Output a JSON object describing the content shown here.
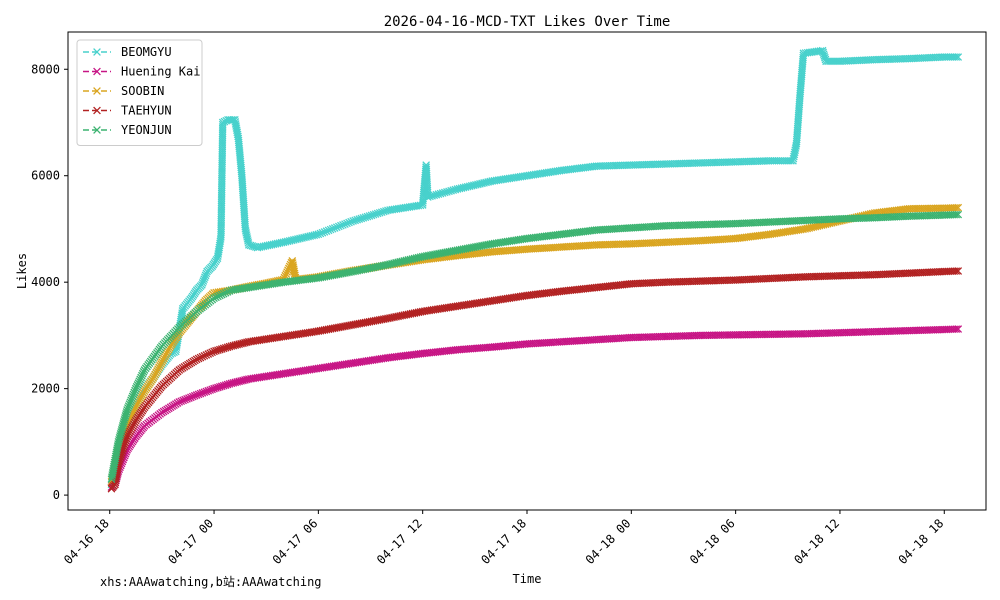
{
  "chart_data": {
    "type": "line",
    "title": "2026-04-16-MCD-TXT Likes Over Time",
    "xlabel": "Time",
    "ylabel": "Likes",
    "footer": "xhs:AAAwatching,b站:AAAwatching",
    "x_ticks": [
      "04-16 18",
      "04-17 00",
      "04-17 06",
      "04-17 12",
      "04-17 18",
      "04-18 00",
      "04-18 06",
      "04-18 12",
      "04-18 18"
    ],
    "y_ticks": [
      0,
      2000,
      4000,
      6000,
      8000
    ],
    "xlim_hours": [
      -2.4,
      50.4
    ],
    "ylim": [
      -280,
      8700
    ],
    "legend_position": "top-left",
    "grid": false,
    "series": [
      {
        "name": "BEOMGYU",
        "color": "#48d1cc",
        "points": [
          [
            0.1,
            200
          ],
          [
            0.5,
            700
          ],
          [
            1,
            1300
          ],
          [
            1.5,
            1700
          ],
          [
            2,
            2000
          ],
          [
            2.5,
            2200
          ],
          [
            3,
            2450
          ],
          [
            3.5,
            2650
          ],
          [
            3.8,
            2700
          ],
          [
            4.2,
            3500
          ],
          [
            4.7,
            3700
          ],
          [
            5,
            3850
          ],
          [
            5.3,
            3950
          ],
          [
            5.6,
            4200
          ],
          [
            5.9,
            4300
          ],
          [
            6.2,
            4450
          ],
          [
            6.4,
            4850
          ],
          [
            6.5,
            7000
          ],
          [
            6.8,
            7050
          ],
          [
            7.2,
            7050
          ],
          [
            7.4,
            6700
          ],
          [
            7.6,
            6000
          ],
          [
            7.8,
            5000
          ],
          [
            8,
            4700
          ],
          [
            8.5,
            4650
          ],
          [
            10,
            4750
          ],
          [
            12,
            4900
          ],
          [
            14,
            5150
          ],
          [
            16,
            5350
          ],
          [
            18,
            5450
          ],
          [
            18.2,
            6200
          ],
          [
            18.3,
            5600
          ],
          [
            20,
            5750
          ],
          [
            22,
            5900
          ],
          [
            24,
            6000
          ],
          [
            26,
            6100
          ],
          [
            28,
            6180
          ],
          [
            30,
            6200
          ],
          [
            32,
            6220
          ],
          [
            34,
            6240
          ],
          [
            36,
            6260
          ],
          [
            38,
            6280
          ],
          [
            39.3,
            6280
          ],
          [
            39.5,
            6600
          ],
          [
            39.7,
            7500
          ],
          [
            39.9,
            8300
          ],
          [
            41,
            8350
          ],
          [
            41.2,
            8150
          ],
          [
            42,
            8150
          ],
          [
            44,
            8180
          ],
          [
            46,
            8200
          ],
          [
            48,
            8230
          ],
          [
            48.8,
            8230
          ]
        ]
      },
      {
        "name": "Huening Kai",
        "color": "#c71585",
        "points": [
          [
            0.1,
            150
          ],
          [
            0.3,
            200
          ],
          [
            0.5,
            450
          ],
          [
            1,
            850
          ],
          [
            1.5,
            1100
          ],
          [
            2,
            1300
          ],
          [
            3,
            1550
          ],
          [
            4,
            1750
          ],
          [
            5,
            1880
          ],
          [
            6,
            2000
          ],
          [
            7,
            2100
          ],
          [
            8,
            2180
          ],
          [
            10,
            2280
          ],
          [
            12,
            2380
          ],
          [
            14,
            2480
          ],
          [
            16,
            2580
          ],
          [
            18,
            2660
          ],
          [
            20,
            2730
          ],
          [
            22,
            2780
          ],
          [
            24,
            2840
          ],
          [
            26,
            2880
          ],
          [
            28,
            2920
          ],
          [
            30,
            2960
          ],
          [
            32,
            2980
          ],
          [
            34,
            3000
          ],
          [
            36,
            3010
          ],
          [
            38,
            3020
          ],
          [
            40,
            3030
          ],
          [
            42,
            3050
          ],
          [
            44,
            3070
          ],
          [
            46,
            3090
          ],
          [
            48,
            3110
          ],
          [
            48.8,
            3120
          ]
        ]
      },
      {
        "name": "SOOBIN",
        "color": "#daa520",
        "points": [
          [
            0.1,
            250
          ],
          [
            0.5,
            800
          ],
          [
            1,
            1300
          ],
          [
            1.5,
            1650
          ],
          [
            2,
            1950
          ],
          [
            2.5,
            2200
          ],
          [
            3,
            2500
          ],
          [
            3.5,
            2800
          ],
          [
            4,
            3050
          ],
          [
            4.5,
            3250
          ],
          [
            5,
            3450
          ],
          [
            5.5,
            3650
          ],
          [
            6,
            3800
          ],
          [
            7,
            3850
          ],
          [
            8,
            3920
          ],
          [
            9,
            3980
          ],
          [
            10,
            4050
          ],
          [
            10.5,
            4400
          ],
          [
            10.7,
            4050
          ],
          [
            12,
            4100
          ],
          [
            14,
            4220
          ],
          [
            16,
            4320
          ],
          [
            18,
            4420
          ],
          [
            20,
            4500
          ],
          [
            22,
            4570
          ],
          [
            24,
            4620
          ],
          [
            26,
            4660
          ],
          [
            28,
            4700
          ],
          [
            30,
            4720
          ],
          [
            32,
            4750
          ],
          [
            34,
            4780
          ],
          [
            36,
            4820
          ],
          [
            38,
            4900
          ],
          [
            40,
            5000
          ],
          [
            42,
            5150
          ],
          [
            44,
            5300
          ],
          [
            46,
            5380
          ],
          [
            48,
            5390
          ],
          [
            48.8,
            5400
          ]
        ]
      },
      {
        "name": "TAEHYUN",
        "color": "#b22222",
        "points": [
          [
            0.1,
            120
          ],
          [
            0.3,
            200
          ],
          [
            0.5,
            600
          ],
          [
            1,
            1100
          ],
          [
            1.5,
            1400
          ],
          [
            2,
            1650
          ],
          [
            3,
            2050
          ],
          [
            4,
            2350
          ],
          [
            5,
            2550
          ],
          [
            6,
            2700
          ],
          [
            7,
            2800
          ],
          [
            8,
            2880
          ],
          [
            10,
            2980
          ],
          [
            12,
            3080
          ],
          [
            14,
            3200
          ],
          [
            16,
            3320
          ],
          [
            18,
            3450
          ],
          [
            20,
            3550
          ],
          [
            22,
            3650
          ],
          [
            24,
            3750
          ],
          [
            26,
            3830
          ],
          [
            28,
            3900
          ],
          [
            30,
            3970
          ],
          [
            32,
            4000
          ],
          [
            34,
            4020
          ],
          [
            36,
            4040
          ],
          [
            38,
            4070
          ],
          [
            40,
            4100
          ],
          [
            42,
            4120
          ],
          [
            44,
            4140
          ],
          [
            46,
            4170
          ],
          [
            48,
            4200
          ],
          [
            48.8,
            4210
          ]
        ]
      },
      {
        "name": "YEONJUN",
        "color": "#3cb371",
        "points": [
          [
            0.1,
            300
          ],
          [
            0.5,
            1000
          ],
          [
            1,
            1600
          ],
          [
            1.5,
            2000
          ],
          [
            2,
            2350
          ],
          [
            3,
            2800
          ],
          [
            4,
            3150
          ],
          [
            5,
            3450
          ],
          [
            6,
            3700
          ],
          [
            7,
            3850
          ],
          [
            8,
            3900
          ],
          [
            10,
            4000
          ],
          [
            12,
            4080
          ],
          [
            14,
            4200
          ],
          [
            16,
            4330
          ],
          [
            18,
            4480
          ],
          [
            20,
            4600
          ],
          [
            22,
            4720
          ],
          [
            24,
            4820
          ],
          [
            26,
            4900
          ],
          [
            28,
            4980
          ],
          [
            30,
            5020
          ],
          [
            32,
            5060
          ],
          [
            34,
            5080
          ],
          [
            36,
            5100
          ],
          [
            38,
            5130
          ],
          [
            40,
            5160
          ],
          [
            42,
            5190
          ],
          [
            44,
            5210
          ],
          [
            46,
            5240
          ],
          [
            48,
            5260
          ],
          [
            48.8,
            5270
          ]
        ]
      }
    ]
  }
}
